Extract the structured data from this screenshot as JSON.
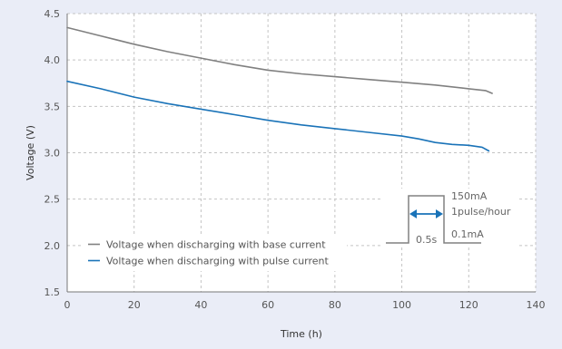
{
  "chart_data": {
    "type": "line",
    "xlabel": "Time (h)",
    "ylabel": "Voltage (V)",
    "xlim": [
      0,
      140
    ],
    "ylim": [
      1.5,
      4.5
    ],
    "xticks": [
      "0",
      "20",
      "40",
      "60",
      "80",
      "100",
      "120",
      "140"
    ],
    "yticks": [
      "1.5",
      "2.0",
      "2.5",
      "3.0",
      "3.5",
      "4.0",
      "4.5"
    ],
    "grid": true,
    "legend_position": "bottom-left",
    "series": [
      {
        "name": "Voltage when discharging with base current",
        "color": "#808080",
        "x": [
          0,
          10,
          20,
          30,
          40,
          50,
          60,
          70,
          80,
          90,
          100,
          110,
          120,
          125,
          127
        ],
        "y": [
          4.35,
          4.26,
          4.17,
          4.09,
          4.02,
          3.95,
          3.89,
          3.85,
          3.82,
          3.79,
          3.76,
          3.73,
          3.69,
          3.67,
          3.64
        ]
      },
      {
        "name": "Voltage when discharging with pulse current",
        "color": "#1a73b8",
        "x": [
          0,
          10,
          20,
          30,
          40,
          50,
          60,
          70,
          80,
          90,
          100,
          105,
          110,
          115,
          120,
          124,
          126
        ],
        "y": [
          3.77,
          3.69,
          3.6,
          3.53,
          3.47,
          3.41,
          3.35,
          3.3,
          3.26,
          3.22,
          3.18,
          3.15,
          3.11,
          3.09,
          3.08,
          3.06,
          3.02
        ]
      }
    ],
    "annotation": {
      "high_label": "150mA",
      "rate_label": "1pulse/hour",
      "width_label": "0.5s",
      "low_label": "0.1mA",
      "line_color": "#808080",
      "arrow_color": "#1a73b8"
    }
  }
}
